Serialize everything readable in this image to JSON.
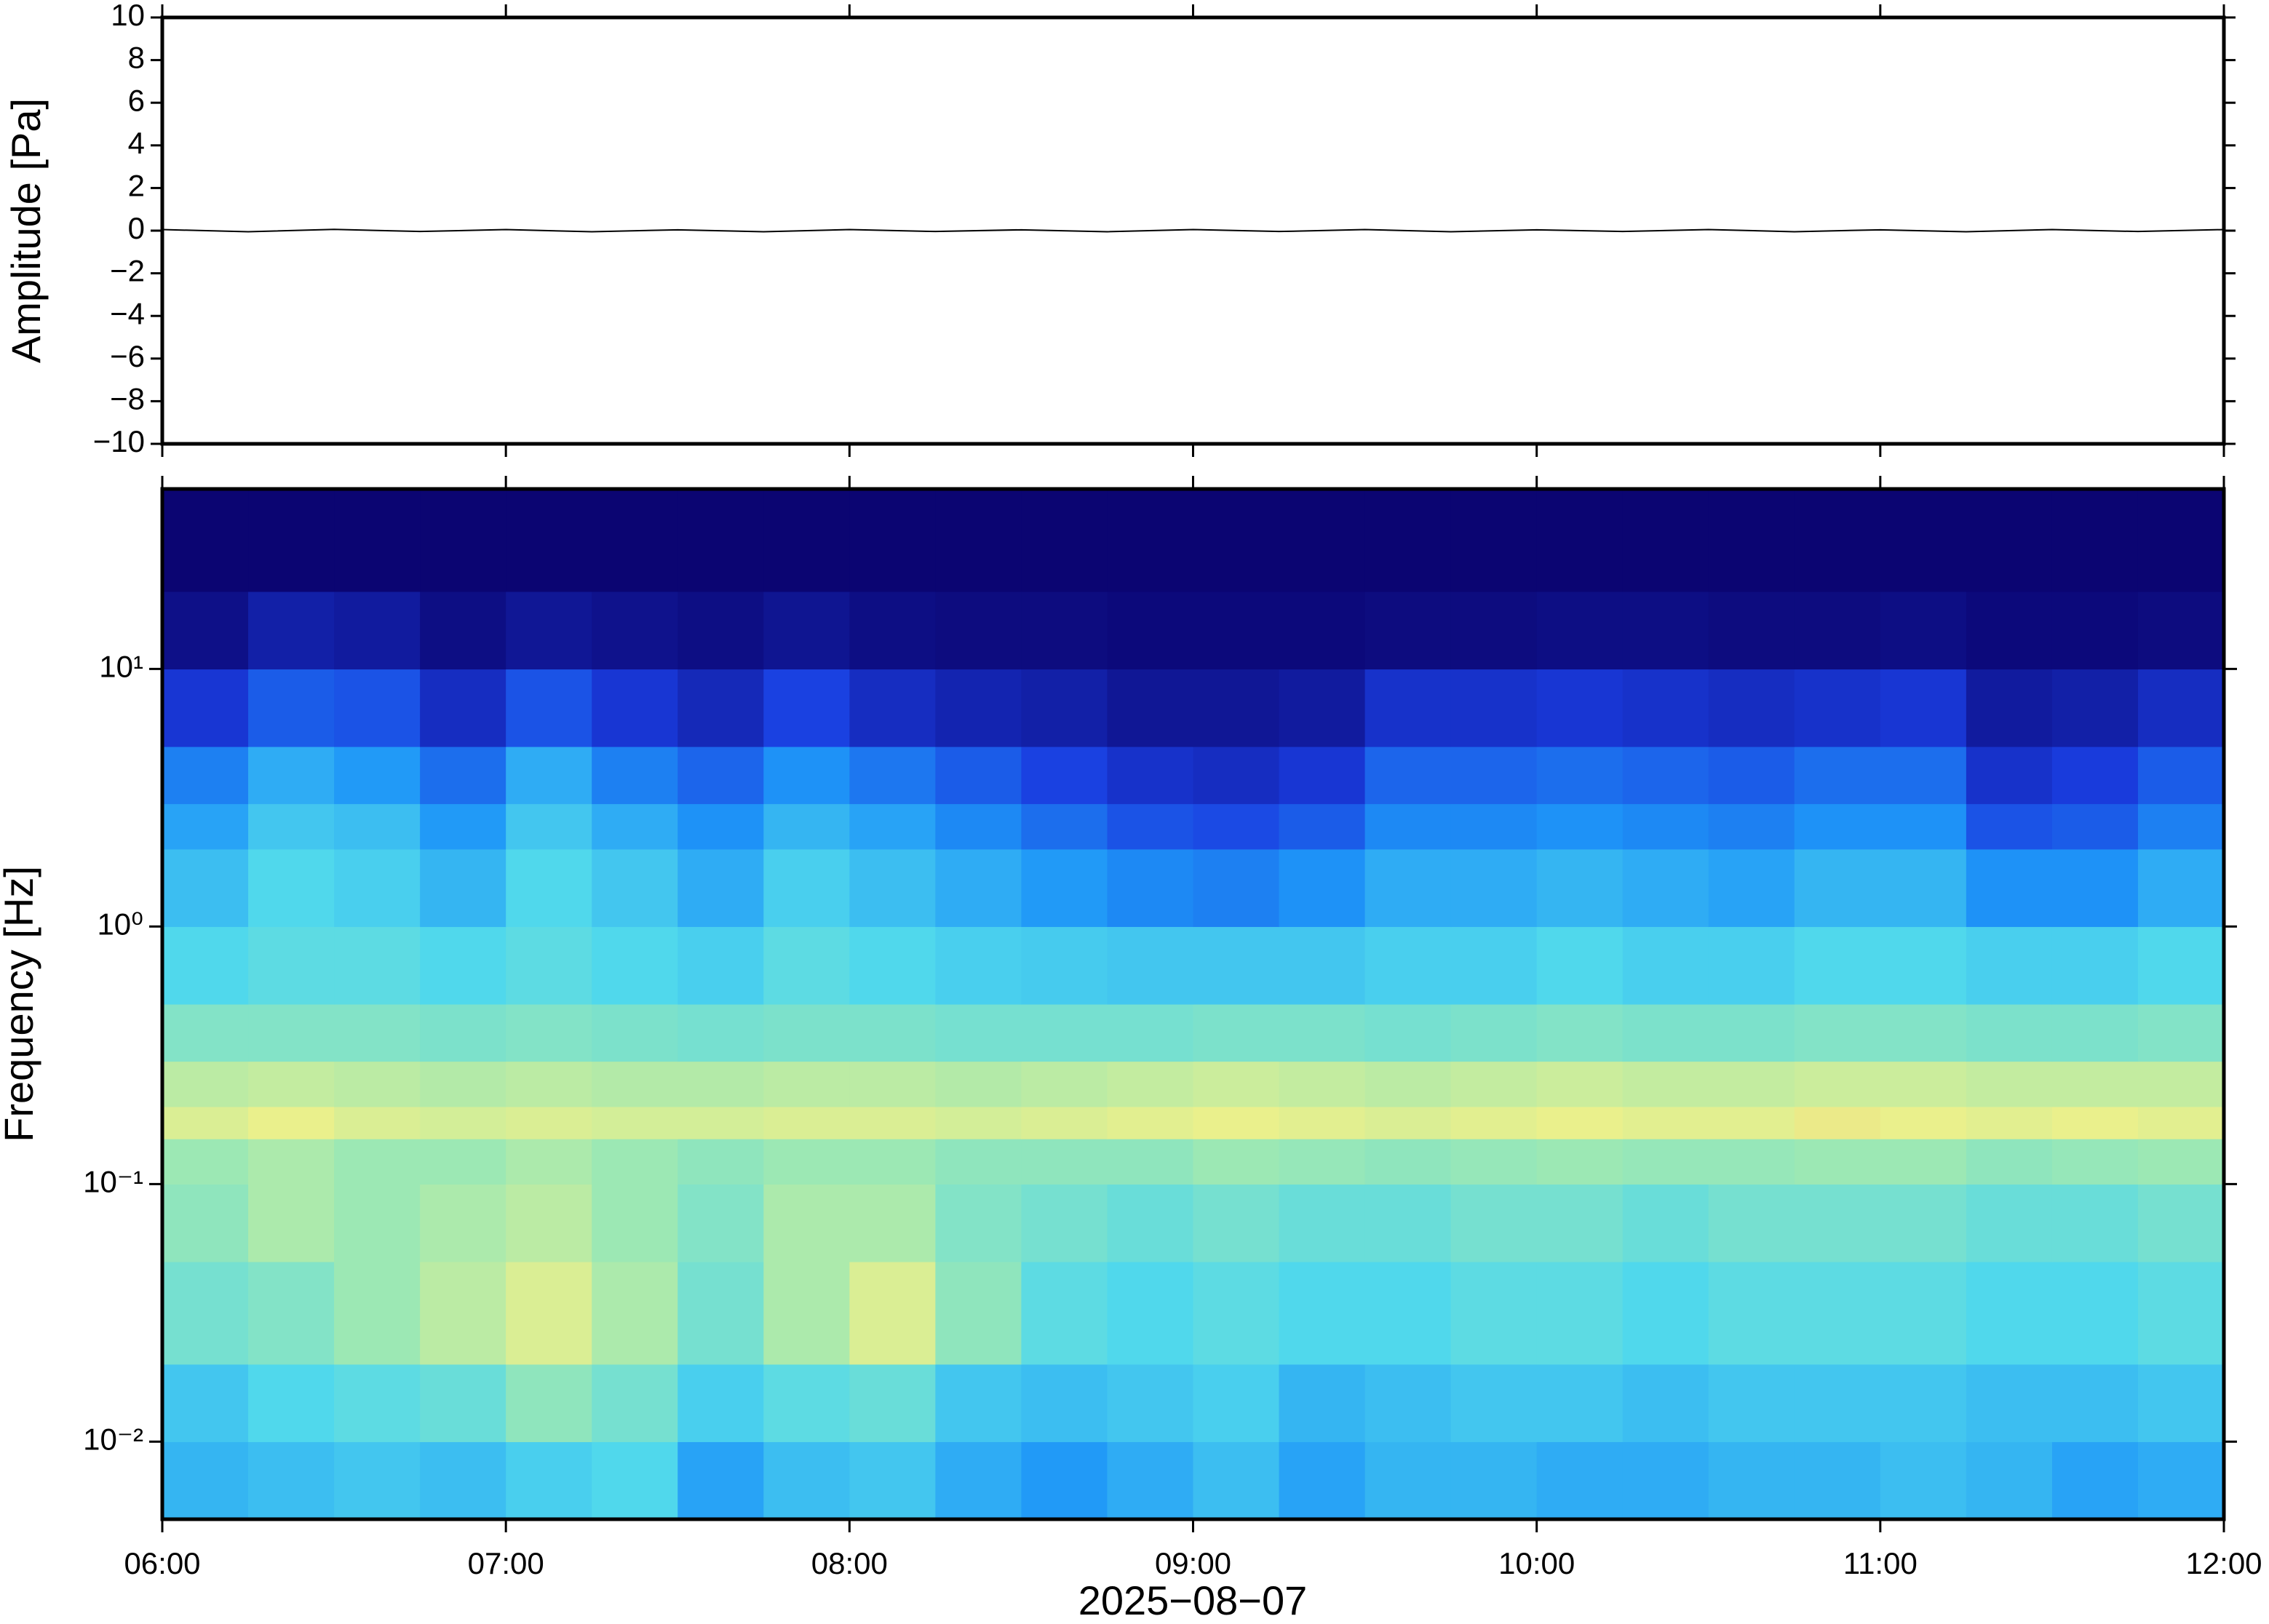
{
  "chart_data": [
    {
      "type": "line",
      "ylabel": "Amplitude [Pa]",
      "x": [
        6,
        6.25,
        6.5,
        6.75,
        7,
        7.25,
        7.5,
        7.75,
        8,
        8.25,
        8.5,
        8.75,
        9,
        9.25,
        9.5,
        9.75,
        10,
        10.25,
        10.5,
        10.75,
        11,
        11.25,
        11.5,
        11.75,
        12
      ],
      "series": [
        {
          "color": "#000000",
          "values": [
            0.05,
            -0.05,
            0.06,
            -0.04,
            0.05,
            -0.05,
            0.04,
            -0.05,
            0.05,
            -0.04,
            0.04,
            -0.05,
            0.05,
            -0.04,
            0.05,
            -0.05,
            0.04,
            -0.04,
            0.05,
            -0.05,
            0.04,
            -0.05,
            0.05,
            -0.04,
            0.05
          ]
        }
      ],
      "xlim": [
        6,
        12
      ],
      "ylim": [
        -10,
        10
      ],
      "yticks": [
        10,
        8,
        6,
        4,
        2,
        0,
        {
          "value": -2,
          "label": "−2"
        },
        {
          "value": -4,
          "label": "−4"
        },
        {
          "value": -6,
          "label": "−6"
        },
        {
          "value": -8,
          "label": "−8"
        },
        {
          "value": -10,
          "label": "−10"
        }
      ]
    },
    {
      "type": "heatmap",
      "ylabel": "Frequency [Hz]",
      "xlabel": "2025−08−07",
      "log_y": true,
      "xlim": [
        6,
        12
      ],
      "ylim": [
        0.005,
        50
      ],
      "xticks": [
        {
          "value": 6,
          "label": "06:00"
        },
        {
          "value": 7,
          "label": "07:00"
        },
        {
          "value": 8,
          "label": "08:00"
        },
        {
          "value": 9,
          "label": "09:00"
        },
        {
          "value": 10,
          "label": "10:00"
        },
        {
          "value": 11,
          "label": "11:00"
        },
        {
          "value": 12,
          "label": "12:00"
        }
      ],
      "yticks": [
        {
          "value": 10,
          "label": "10¹"
        },
        {
          "value": 1,
          "label": "10⁰"
        },
        {
          "value": 0.1,
          "label": "10⁻¹"
        },
        {
          "value": 0.01,
          "label": "10⁻²"
        }
      ],
      "colorscale": [
        [
          0,
          "#0b0572"
        ],
        [
          0.25,
          "#1a3de0"
        ],
        [
          0.45,
          "#1e96f8"
        ],
        [
          0.6,
          "#50d8ec"
        ],
        [
          0.72,
          "#9ce8b4"
        ],
        [
          0.82,
          "#eaf08c"
        ],
        [
          0.92,
          "#f4b872"
        ]
      ],
      "x_edges": [
        6,
        6.25,
        6.5,
        6.75,
        7,
        7.25,
        7.5,
        7.75,
        8,
        8.25,
        8.5,
        8.75,
        9,
        9.25,
        9.5,
        9.75,
        10,
        10.25,
        10.5,
        10.75,
        11,
        11.25,
        11.5,
        11.75,
        12
      ],
      "y_edges": [
        0.005,
        0.01,
        0.02,
        0.05,
        0.1,
        0.15,
        0.2,
        0.3,
        0.5,
        1,
        2,
        3,
        5,
        10,
        20,
        50
      ],
      "z": [
        [
          0.52,
          0.54,
          0.56,
          0.54,
          0.58,
          0.6,
          0.48,
          0.54,
          0.56,
          0.5,
          0.46,
          0.5,
          0.54,
          0.48,
          0.52,
          0.52,
          0.5,
          0.5,
          0.52,
          0.52,
          0.54,
          0.52,
          0.48,
          0.5
        ],
        [
          0.56,
          0.6,
          0.62,
          0.64,
          0.7,
          0.66,
          0.58,
          0.62,
          0.64,
          0.56,
          0.54,
          0.56,
          0.58,
          0.52,
          0.54,
          0.56,
          0.56,
          0.54,
          0.56,
          0.56,
          0.56,
          0.54,
          0.54,
          0.56
        ],
        [
          0.66,
          0.68,
          0.72,
          0.76,
          0.8,
          0.74,
          0.66,
          0.74,
          0.8,
          0.7,
          0.62,
          0.6,
          0.62,
          0.6,
          0.6,
          0.62,
          0.62,
          0.6,
          0.62,
          0.62,
          0.62,
          0.6,
          0.6,
          0.62
        ],
        [
          0.7,
          0.74,
          0.72,
          0.74,
          0.76,
          0.72,
          0.68,
          0.74,
          0.74,
          0.68,
          0.66,
          0.64,
          0.66,
          0.64,
          0.64,
          0.66,
          0.66,
          0.64,
          0.66,
          0.66,
          0.66,
          0.64,
          0.64,
          0.66
        ],
        [
          0.72,
          0.74,
          0.72,
          0.72,
          0.74,
          0.72,
          0.7,
          0.72,
          0.72,
          0.7,
          0.7,
          0.7,
          0.72,
          0.71,
          0.7,
          0.71,
          0.72,
          0.71,
          0.71,
          0.72,
          0.72,
          0.7,
          0.71,
          0.72
        ],
        [
          0.8,
          0.82,
          0.8,
          0.79,
          0.8,
          0.79,
          0.79,
          0.8,
          0.8,
          0.79,
          0.8,
          0.81,
          0.82,
          0.81,
          0.8,
          0.81,
          0.82,
          0.81,
          0.81,
          0.83,
          0.82,
          0.81,
          0.82,
          0.81
        ],
        [
          0.76,
          0.77,
          0.76,
          0.75,
          0.76,
          0.75,
          0.75,
          0.76,
          0.76,
          0.75,
          0.76,
          0.77,
          0.78,
          0.77,
          0.76,
          0.77,
          0.78,
          0.77,
          0.77,
          0.78,
          0.78,
          0.77,
          0.77,
          0.77
        ],
        [
          0.68,
          0.68,
          0.68,
          0.67,
          0.68,
          0.67,
          0.66,
          0.67,
          0.67,
          0.66,
          0.66,
          0.66,
          0.67,
          0.67,
          0.66,
          0.67,
          0.68,
          0.67,
          0.67,
          0.68,
          0.68,
          0.67,
          0.67,
          0.68
        ],
        [
          0.6,
          0.62,
          0.62,
          0.6,
          0.62,
          0.6,
          0.58,
          0.62,
          0.6,
          0.58,
          0.57,
          0.56,
          0.56,
          0.56,
          0.58,
          0.58,
          0.6,
          0.58,
          0.58,
          0.6,
          0.6,
          0.58,
          0.58,
          0.6
        ],
        [
          0.54,
          0.6,
          0.58,
          0.52,
          0.6,
          0.56,
          0.5,
          0.58,
          0.54,
          0.5,
          0.46,
          0.42,
          0.4,
          0.44,
          0.5,
          0.5,
          0.52,
          0.5,
          0.48,
          0.52,
          0.52,
          0.44,
          0.44,
          0.5
        ],
        [
          0.48,
          0.56,
          0.54,
          0.46,
          0.56,
          0.5,
          0.44,
          0.52,
          0.48,
          0.42,
          0.36,
          0.3,
          0.28,
          0.32,
          0.42,
          0.42,
          0.44,
          0.42,
          0.4,
          0.44,
          0.44,
          0.3,
          0.32,
          0.4
        ],
        [
          0.4,
          0.5,
          0.46,
          0.36,
          0.5,
          0.4,
          0.34,
          0.44,
          0.38,
          0.32,
          0.26,
          0.2,
          0.18,
          0.22,
          0.34,
          0.34,
          0.36,
          0.34,
          0.32,
          0.36,
          0.36,
          0.2,
          0.24,
          0.32
        ],
        [
          0.22,
          0.32,
          0.3,
          0.18,
          0.3,
          0.22,
          0.16,
          0.26,
          0.18,
          0.14,
          0.12,
          0.08,
          0.08,
          0.1,
          0.2,
          0.2,
          0.22,
          0.2,
          0.18,
          0.2,
          0.22,
          0.1,
          0.12,
          0.18
        ],
        [
          0.05,
          0.12,
          0.1,
          0.04,
          0.08,
          0.06,
          0.04,
          0.07,
          0.04,
          0.03,
          0.03,
          0.02,
          0.02,
          0.02,
          0.03,
          0.03,
          0.04,
          0.04,
          0.03,
          0.03,
          0.04,
          0.02,
          0.02,
          0.03
        ],
        [
          0,
          0,
          0,
          0,
          0,
          0,
          0,
          0,
          0,
          0,
          0,
          0,
          0,
          0,
          0,
          0,
          0,
          0,
          0,
          0,
          0,
          0,
          0,
          0
        ]
      ]
    }
  ]
}
